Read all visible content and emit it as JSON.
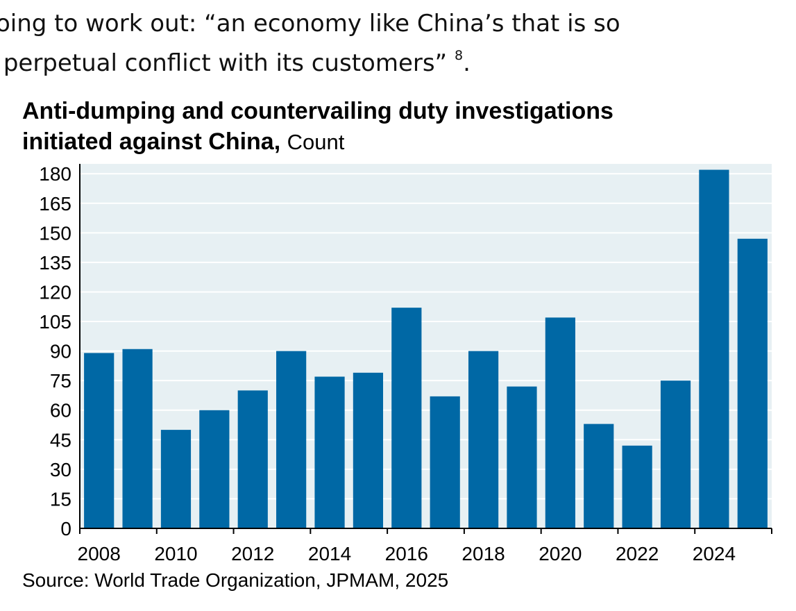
{
  "intro": {
    "line1": "oing to work out: “an economy like China’s that is so",
    "line2": "perpetual conflict with its customers”",
    "footnote": "8",
    "line2_end": "."
  },
  "chart_data": {
    "type": "bar",
    "title": "Anti-dumping and countervailing duty investigations initiated against China,",
    "title_line1": "Anti-dumping and countervailing duty investigations",
    "title_line2": "initiated against China,",
    "unit": "Count",
    "source": "Source: World Trade Organization, JPMAM, 2025",
    "categories": [
      "2008",
      "2009",
      "2010",
      "2011",
      "2012",
      "2013",
      "2014",
      "2015",
      "2016",
      "2017",
      "2018",
      "2019",
      "2020",
      "2021",
      "2022",
      "2023",
      "2024",
      "2025"
    ],
    "values": [
      89,
      91,
      50,
      60,
      70,
      90,
      77,
      79,
      112,
      67,
      90,
      72,
      107,
      53,
      42,
      75,
      182,
      147
    ],
    "x_tick_labels": [
      "2008",
      "2010",
      "2012",
      "2014",
      "2016",
      "2018",
      "2020",
      "2022",
      "2024"
    ],
    "y_ticks": [
      0,
      15,
      30,
      45,
      60,
      75,
      90,
      105,
      120,
      135,
      150,
      165,
      180
    ],
    "ylim": [
      0,
      185
    ],
    "grid": true,
    "colors": {
      "bar": "#0068a5",
      "plot_background": "#e7f0f3",
      "grid": "#ffffff"
    }
  }
}
